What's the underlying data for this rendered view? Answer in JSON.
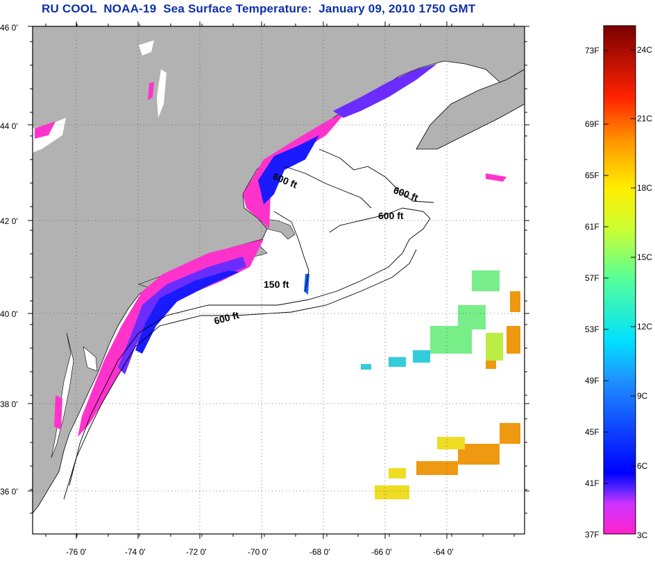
{
  "title": "RU COOL  NOAA-19  Sea Surface Temperature:  January 09, 2010 1750 GMT",
  "map": {
    "lat_labels": [
      "46 0'",
      "44 0'",
      "42 0'",
      "40 0'",
      "38 0'",
      "36 0'"
    ],
    "lon_labels": [
      "-76 0'",
      "-74 0'",
      "-72 0'",
      "-70 0'",
      "-68 0'",
      "-66 0'",
      "-64 0'"
    ],
    "contour_labels": [
      "600 ft",
      "600 ft",
      "600 ft",
      "150 ft",
      "600 ft"
    ],
    "colors": {
      "land": "#b2b2b2",
      "ocean": "#ffffff",
      "grid": "#555555"
    }
  },
  "colorbar": {
    "f_labels": [
      "73F",
      "69F",
      "65F",
      "61F",
      "57F",
      "53F",
      "49F",
      "45F",
      "41F",
      "37F"
    ],
    "c_labels": [
      "24C",
      "21C",
      "18C",
      "15C",
      "12C",
      "9C",
      "6C",
      "3C"
    ]
  }
}
